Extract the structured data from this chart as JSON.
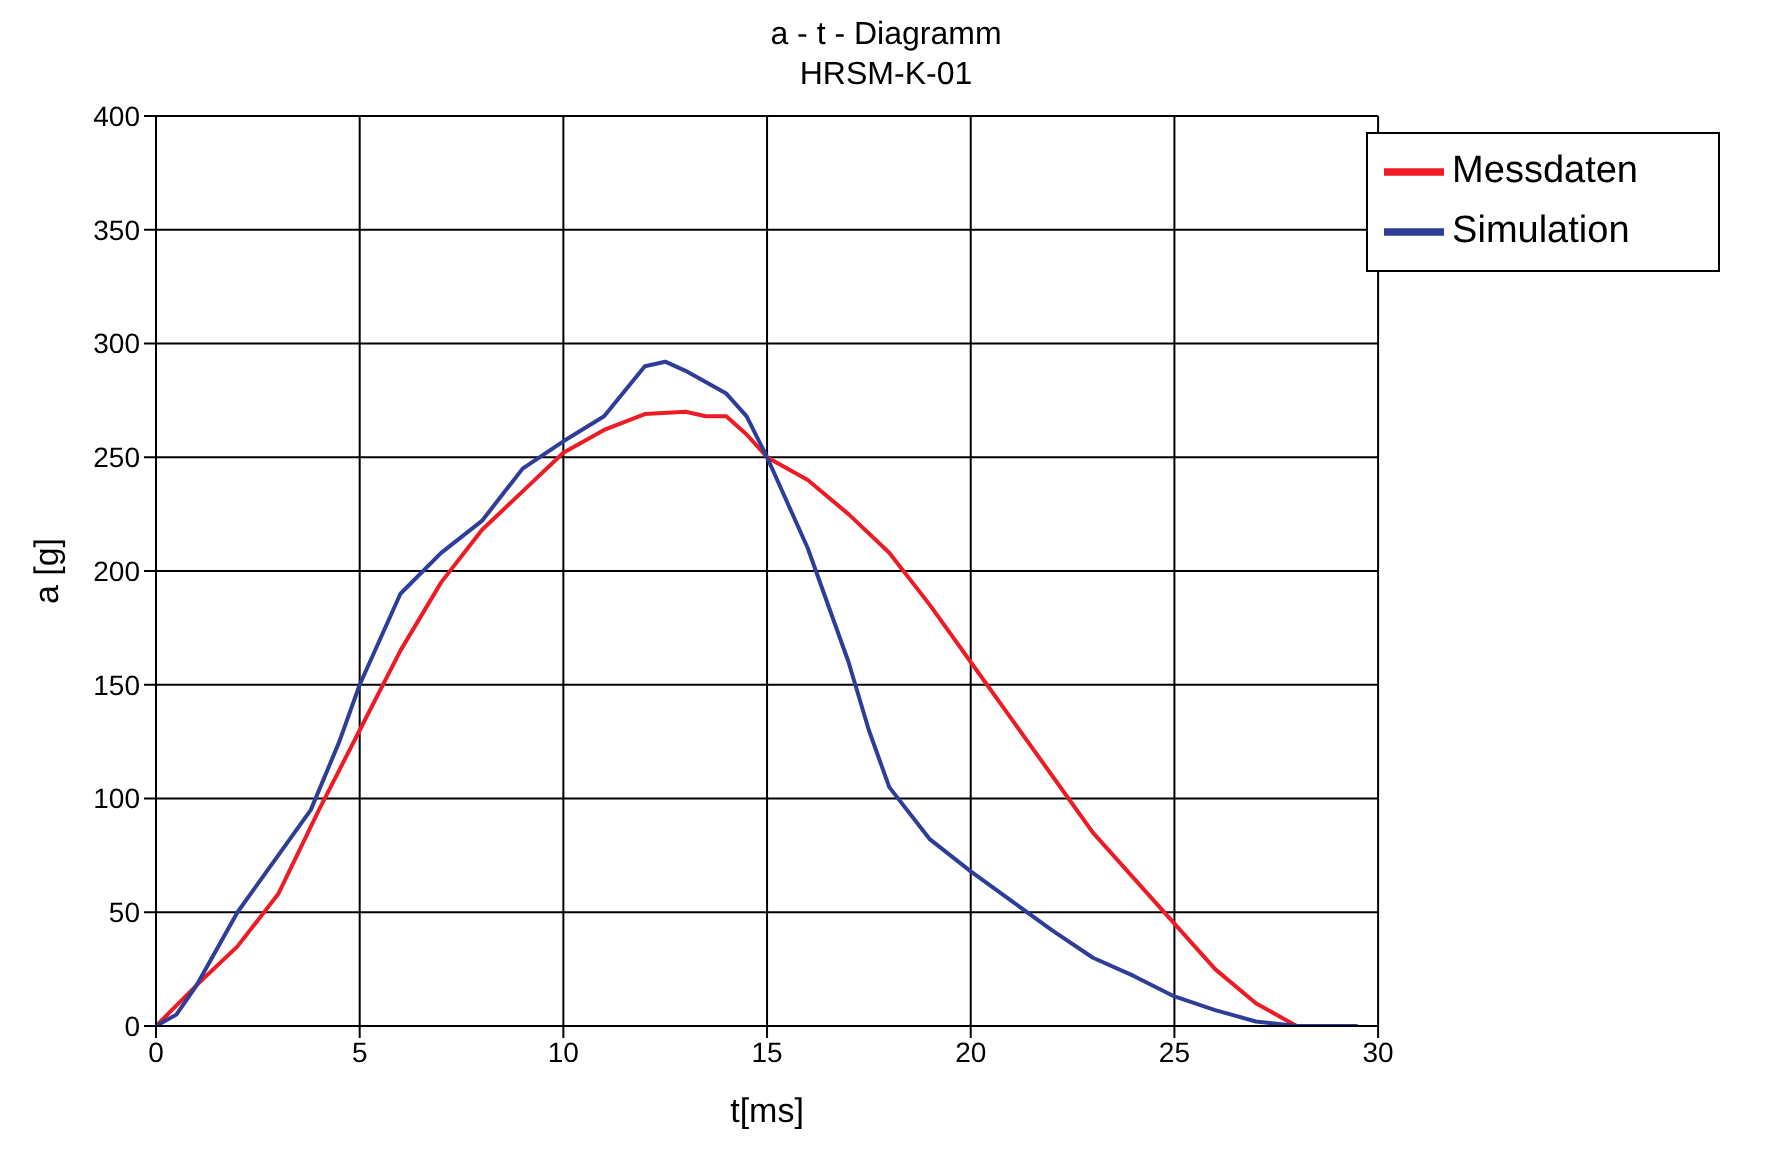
{
  "chart_data": {
    "type": "line",
    "title": "a - t - Diagramm",
    "subtitle": "HRSM-K-01",
    "xlabel": "t[ms]",
    "ylabel": "a [g]",
    "xlim": [
      0,
      30
    ],
    "xticks": [
      0,
      5,
      10,
      15,
      20,
      25,
      30
    ],
    "ylim": [
      0,
      400
    ],
    "yticks": [
      0,
      50,
      100,
      150,
      200,
      250,
      300,
      350,
      400
    ],
    "grid": true,
    "legend": "top right",
    "marker": "none",
    "line_style": "solid",
    "series": [
      {
        "name": "Messdaten",
        "color": "#ed1c24",
        "x": [
          0,
          1,
          2,
          3,
          4,
          5,
          6,
          7,
          8,
          9,
          10,
          11,
          12,
          13,
          13.5,
          14,
          14.5,
          15,
          16,
          17,
          18,
          19,
          20,
          21,
          22,
          23,
          24,
          25,
          26,
          27,
          28,
          29.3
        ],
        "values": [
          0,
          18,
          35,
          58,
          95,
          130,
          165,
          195,
          218,
          235,
          252,
          262,
          269,
          270,
          268,
          268,
          260,
          250,
          240,
          225,
          208,
          185,
          160,
          135,
          110,
          85,
          65,
          45,
          25,
          10,
          0,
          0
        ]
      },
      {
        "name": "Simulation",
        "color": "#2e3d98",
        "x": [
          0,
          0.5,
          1,
          2,
          3,
          3.8,
          4.5,
          5,
          6,
          7,
          8,
          9,
          10,
          11,
          12,
          12.5,
          13,
          14,
          14.5,
          15,
          16,
          17,
          17.5,
          18,
          19,
          20,
          21,
          22,
          23,
          24,
          25,
          26,
          27,
          28,
          29.5
        ],
        "values": [
          0,
          5,
          18,
          50,
          75,
          95,
          125,
          150,
          190,
          208,
          222,
          245,
          257,
          268,
          290,
          292,
          288,
          278,
          268,
          250,
          210,
          160,
          130,
          105,
          82,
          68,
          55,
          42,
          30,
          22,
          13,
          7,
          2,
          0,
          0
        ]
      }
    ]
  }
}
